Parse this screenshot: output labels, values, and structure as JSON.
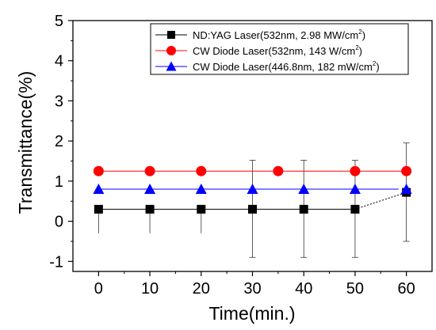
{
  "chart_data": {
    "type": "scatter",
    "xlabel": "Time(min.)",
    "ylabel": "Transmittance(%)",
    "xlim": [
      -5,
      65
    ],
    "ylim": [
      -1.25,
      5
    ],
    "x_ticks": [
      "0",
      "10",
      "20",
      "30",
      "40",
      "50",
      "60"
    ],
    "y_ticks": [
      "-1",
      "0",
      "1",
      "2",
      "3",
      "4",
      "5"
    ],
    "grid": false,
    "legend_position": "top-right",
    "series": [
      {
        "name": "ND:YAG Laser(532nm, 2.98 MW/cm",
        "name_sup": "2",
        "name_end": ")",
        "marker": "square",
        "color": "#000000",
        "x": [
          0,
          10,
          20,
          30,
          40,
          50,
          60
        ],
        "y": [
          0.3,
          0.3,
          0.3,
          0.3,
          0.3,
          0.3,
          0.72
        ],
        "err_low": [
          -0.3,
          -0.3,
          -0.3,
          -0.9,
          -0.9,
          -0.9,
          -0.5
        ],
        "err_high": [
          0.3,
          0.3,
          0.3,
          1.52,
          1.52,
          1.52,
          1.95
        ]
      },
      {
        "name": "CW Diode Laser(532nm, 143 W/cm",
        "name_sup": "2",
        "name_end": ")",
        "marker": "circle",
        "color": "#ff0000",
        "x": [
          0,
          10,
          20,
          35,
          50,
          60
        ],
        "y": [
          1.25,
          1.25,
          1.25,
          1.25,
          1.25,
          1.25
        ]
      },
      {
        "name": "CW Diode Laser(446.8nm, 182 mW/cm",
        "name_sup": "2",
        "name_end": ")",
        "marker": "triangle",
        "color": "#0000ff",
        "x": [
          0,
          10,
          20,
          30,
          40,
          50,
          60
        ],
        "y": [
          0.8,
          0.8,
          0.8,
          0.8,
          0.8,
          0.8,
          0.8
        ]
      }
    ]
  }
}
